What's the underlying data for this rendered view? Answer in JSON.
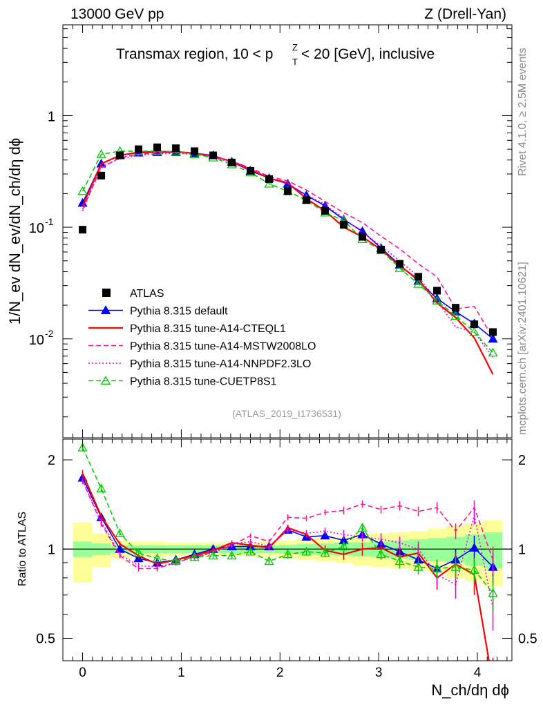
{
  "header": {
    "left": "13000 GeV pp",
    "right": "Z (Drell-Yan)"
  },
  "side": {
    "rivet": "Rivet 4.1.0, ≥ 2.5M events",
    "mcplots": "mcplots.cern.ch [arXiv:2401.10621]"
  },
  "chart_data": {
    "type": "scatter",
    "title_main": "Transmax region, 10 < p",
    "title_sup": "Z",
    "title_sub": "T",
    "title_rest": " < 20 [GeV], inclusive",
    "ylabel": "1/N_ev dN_ev/dN_ch/dη dϕ",
    "xlabel": "N_ch/dη dϕ",
    "analysis": "(ATLAS_2019_I1736531)",
    "ratio_ylabel": "Ratio to ATLAS",
    "xlim": [
      -0.2,
      4.35
    ],
    "ylim_main": [
      0.0013,
      6.5
    ],
    "ylim_ratio": [
      0.42,
      2.35
    ],
    "yscale_main": "log",
    "yscale_ratio": "log",
    "x_ticks": [
      0,
      1,
      2,
      3,
      4
    ],
    "main_y_ticks": [
      {
        "base": "10",
        "exp": "-2",
        "value": 0.01
      },
      {
        "base": "10",
        "exp": "-1",
        "value": 0.1
      },
      {
        "base": "1",
        "exp": "",
        "value": 1
      }
    ],
    "ratio_y_ticks": [
      {
        "label": "0.5",
        "value": 0.5
      },
      {
        "label": "1",
        "value": 1
      },
      {
        "label": "2",
        "value": 2
      }
    ],
    "x": [
      0.0,
      0.189,
      0.378,
      0.567,
      0.756,
      0.945,
      1.134,
      1.323,
      1.512,
      1.701,
      1.89,
      2.079,
      2.268,
      2.457,
      2.646,
      2.835,
      3.024,
      3.213,
      3.402,
      3.591,
      3.78,
      3.969,
      4.158
    ],
    "legend": [
      "ATLAS",
      "Pythia 8.315 default",
      "Pythia 8.315 tune-A14-CTEQL1",
      "Pythia 8.315 tune-A14-MSTW2008LO",
      "Pythia 8.315 tune-A14-NNPDF2.3LO",
      "Pythia 8.315 tune-CUETP8S1"
    ],
    "data": {
      "name": "ATLAS",
      "values": [
        0.095,
        0.29,
        0.44,
        0.5,
        0.52,
        0.51,
        0.48,
        0.44,
        0.38,
        0.32,
        0.27,
        0.21,
        0.175,
        0.14,
        0.105,
        0.082,
        0.063,
        0.047,
        0.036,
        0.027,
        0.019,
        0.0135,
        0.0115
      ],
      "err_inner": [
        0.06,
        0.045,
        0.03,
        0.03,
        0.03,
        0.03,
        0.03,
        0.03,
        0.03,
        0.03,
        0.03,
        0.035,
        0.04,
        0.045,
        0.05,
        0.055,
        0.06,
        0.07,
        0.08,
        0.09,
        0.1,
        0.12,
        0.14
      ],
      "err_outer": [
        0.23,
        0.13,
        0.07,
        0.06,
        0.06,
        0.05,
        0.05,
        0.05,
        0.05,
        0.05,
        0.06,
        0.07,
        0.08,
        0.09,
        0.1,
        0.12,
        0.13,
        0.14,
        0.15,
        0.17,
        0.2,
        0.22,
        0.25
      ]
    },
    "series": [
      {
        "name": "Pythia 8.315 default",
        "color": "#0000ff",
        "style": "solid",
        "marker": "triangle-filled",
        "values": [
          0.165,
          0.37,
          0.44,
          0.465,
          0.47,
          0.47,
          0.46,
          0.44,
          0.385,
          0.32,
          0.275,
          0.245,
          0.193,
          0.155,
          0.117,
          0.092,
          0.065,
          0.046,
          0.033,
          0.023,
          0.0175,
          0.0137,
          0.01
        ],
        "ratio": [
          1.74,
          1.28,
          1.0,
          0.93,
          0.9,
          0.92,
          0.96,
          1.0,
          1.02,
          1.02,
          1.02,
          1.16,
          1.1,
          1.11,
          1.07,
          1.12,
          1.04,
          0.98,
          0.92,
          0.86,
          0.92,
          1.01,
          0.87
        ],
        "ratio_err": [
          0.04,
          0.03,
          0.02,
          0.02,
          0.02,
          0.02,
          0.02,
          0.02,
          0.02,
          0.02,
          0.02,
          0.03,
          0.03,
          0.03,
          0.03,
          0.04,
          0.04,
          0.05,
          0.05,
          0.06,
          0.08,
          0.1,
          0.1
        ]
      },
      {
        "name": "Pythia 8.315 tune-A14-CTEQL1",
        "color": "#ff0000",
        "style": "solid",
        "marker": "none",
        "values": [
          0.155,
          0.37,
          0.44,
          0.47,
          0.475,
          0.475,
          0.46,
          0.43,
          0.39,
          0.33,
          0.275,
          0.25,
          0.18,
          0.14,
          0.1,
          0.082,
          0.063,
          0.045,
          0.034,
          0.021,
          0.0155,
          0.0102,
          0.0048
        ],
        "ratio": [
          1.8,
          1.29,
          1.04,
          0.95,
          0.89,
          0.92,
          0.95,
          0.99,
          1.05,
          1.03,
          1.01,
          1.18,
          1.12,
          0.99,
          0.96,
          1.0,
          1.01,
          0.94,
          0.97,
          0.8,
          0.89,
          0.82,
          0.35
        ],
        "ratio_err": [
          0.05,
          0.03,
          0.02,
          0.02,
          0.02,
          0.02,
          0.02,
          0.02,
          0.02,
          0.02,
          0.02,
          0.03,
          0.03,
          0.04,
          0.04,
          0.05,
          0.05,
          0.06,
          0.07,
          0.07,
          0.09,
          0.12,
          0.08
        ]
      },
      {
        "name": "Pythia 8.315 tune-A14-MSTW2008LO",
        "color": "#ff1493",
        "style": "dashed",
        "marker": "none",
        "values": [
          0.145,
          0.34,
          0.42,
          0.45,
          0.465,
          0.465,
          0.455,
          0.435,
          0.39,
          0.34,
          0.285,
          0.26,
          0.215,
          0.17,
          0.135,
          0.11,
          0.083,
          0.064,
          0.047,
          0.036,
          0.0185,
          0.0195,
          0.0102
        ],
        "ratio": [
          1.7,
          1.22,
          0.95,
          0.86,
          0.86,
          0.9,
          0.94,
          0.98,
          1.03,
          1.11,
          1.06,
          1.28,
          1.27,
          1.33,
          1.35,
          1.42,
          1.36,
          1.4,
          1.34,
          1.38,
          1.15,
          1.38,
          0.92
        ],
        "ratio_err": [
          0.04,
          0.03,
          0.02,
          0.02,
          0.02,
          0.02,
          0.02,
          0.02,
          0.02,
          0.02,
          0.02,
          0.03,
          0.03,
          0.03,
          0.04,
          0.04,
          0.04,
          0.05,
          0.05,
          0.06,
          0.07,
          0.08,
          0.1
        ]
      },
      {
        "name": "Pythia 8.315 tune-A14-NNPDF2.3LO",
        "color": "#ee00ee",
        "style": "dotted",
        "marker": "none",
        "values": [
          0.14,
          0.35,
          0.41,
          0.44,
          0.455,
          0.46,
          0.45,
          0.425,
          0.38,
          0.325,
          0.28,
          0.245,
          0.195,
          0.16,
          0.12,
          0.09,
          0.068,
          0.05,
          0.036,
          0.022,
          0.0128,
          0.0115,
          0.0068
        ],
        "ratio": [
          1.7,
          1.24,
          0.96,
          0.88,
          0.87,
          0.9,
          0.94,
          0.97,
          1.04,
          1.06,
          1.02,
          1.16,
          1.13,
          1.15,
          1.12,
          1.1,
          1.08,
          1.05,
          1.0,
          0.82,
          0.76,
          1.3,
          0.63
        ],
        "ratio_err": [
          0.04,
          0.03,
          0.02,
          0.02,
          0.02,
          0.02,
          0.02,
          0.02,
          0.02,
          0.02,
          0.02,
          0.03,
          0.03,
          0.03,
          0.04,
          0.04,
          0.05,
          0.05,
          0.06,
          0.07,
          0.08,
          0.09,
          0.1
        ]
      },
      {
        "name": "Pythia 8.315 tune-CUETP8S1",
        "color": "#00cc00",
        "style": "dashed",
        "marker": "triangle-open",
        "values": [
          0.21,
          0.45,
          0.48,
          0.48,
          0.48,
          0.475,
          0.45,
          0.42,
          0.365,
          0.31,
          0.245,
          0.21,
          0.175,
          0.135,
          0.115,
          0.078,
          0.062,
          0.043,
          0.031,
          0.022,
          0.016,
          0.0115,
          0.0075
        ],
        "ratio": [
          2.2,
          1.6,
          1.13,
          0.97,
          0.93,
          0.91,
          0.94,
          0.95,
          0.95,
          0.98,
          0.91,
          0.96,
          0.98,
          0.97,
          1.02,
          1.18,
          0.96,
          0.91,
          0.87,
          0.86,
          0.87,
          0.85,
          0.71
        ],
        "ratio_err": [
          0.05,
          0.04,
          0.02,
          0.02,
          0.02,
          0.02,
          0.02,
          0.02,
          0.02,
          0.02,
          0.02,
          0.03,
          0.03,
          0.03,
          0.04,
          0.04,
          0.04,
          0.05,
          0.05,
          0.06,
          0.07,
          0.08,
          0.1
        ]
      }
    ]
  }
}
